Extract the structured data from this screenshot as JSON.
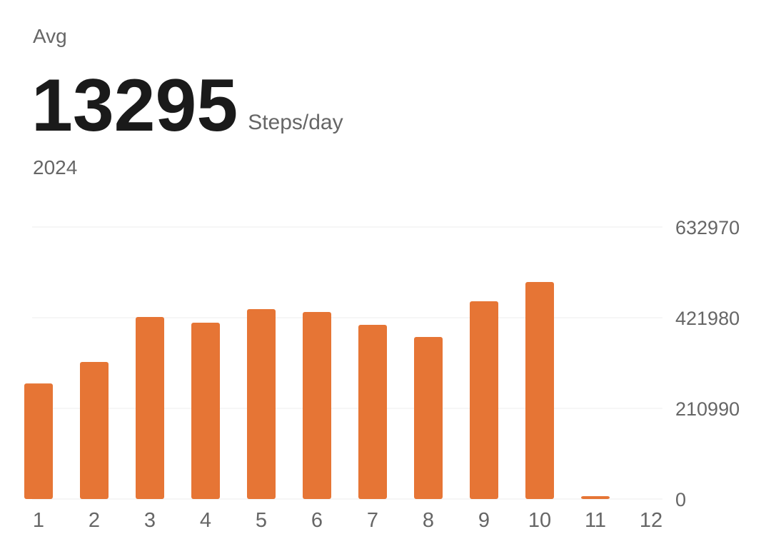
{
  "chart_data": {
    "type": "bar",
    "title": "Avg",
    "average": 13295,
    "unit": "Steps/day",
    "subtitle": "2024",
    "categories": [
      "1",
      "2",
      "3",
      "4",
      "5",
      "6",
      "7",
      "8",
      "9",
      "10",
      "11",
      "12"
    ],
    "values": [
      269000,
      319000,
      423600,
      410300,
      441900,
      435300,
      405400,
      377100,
      460200,
      505000,
      6600,
      null
    ],
    "color": "#e67535",
    "ylim": [
      0,
      632970
    ],
    "yticks": [
      0,
      210990,
      421980,
      632970
    ],
    "grid": true
  }
}
